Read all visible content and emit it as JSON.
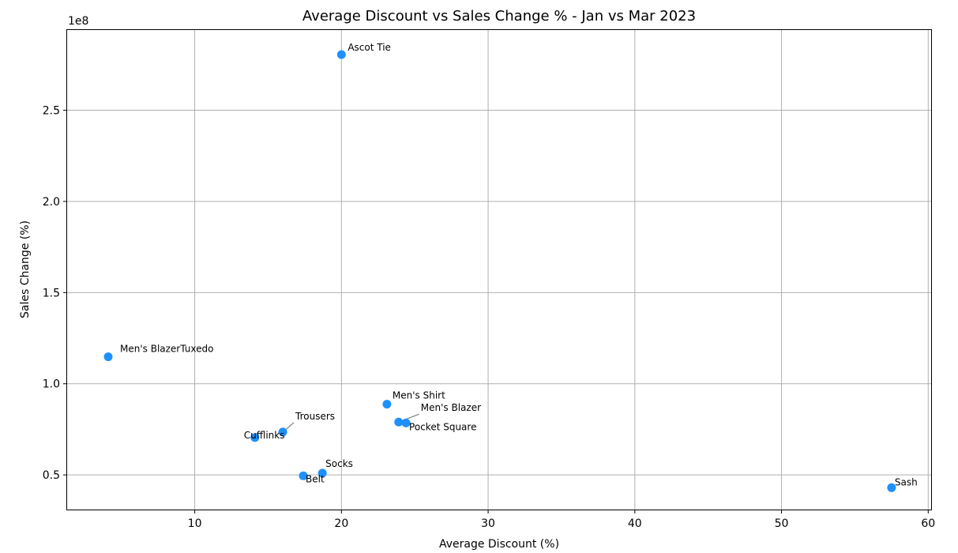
{
  "chart_data": {
    "type": "scatter",
    "title": "Average Discount vs Sales Change % - Jan vs Mar 2023",
    "xlabel": "Average Discount (%)",
    "ylabel": "Sales Change (%)",
    "offset_text": "1e8",
    "xlim": [
      1.3,
      60.2
    ],
    "ylim": [
      0.31,
      2.94
    ],
    "x_ticks": [
      10,
      20,
      30,
      40,
      50,
      60
    ],
    "x_tick_labels": [
      "10",
      "20",
      "30",
      "40",
      "50",
      "60"
    ],
    "y_ticks": [
      0.5,
      1.0,
      1.5,
      2.0,
      2.5
    ],
    "y_tick_labels": [
      "0.5",
      "1.0",
      "1.5",
      "2.0",
      "2.5"
    ],
    "grid": true,
    "marker_color": "#1e90ff",
    "points": [
      {
        "label": "Ascot Tie",
        "x": 20.0,
        "y": 2.805
      },
      {
        "label": "Men's BlazerTuxedo",
        "x": 4.1,
        "y": 1.148
      },
      {
        "label": "Men's Shirt",
        "x": 23.1,
        "y": 0.888
      },
      {
        "label": "Men's Blazer",
        "x": 23.9,
        "y": 0.79
      },
      {
        "label": "Pocket Square",
        "x": 24.4,
        "y": 0.785
      },
      {
        "label": "Trousers",
        "x": 16.0,
        "y": 0.735
      },
      {
        "label": "Cufflinks",
        "x": 14.1,
        "y": 0.705
      },
      {
        "label": "Socks",
        "x": 18.7,
        "y": 0.51
      },
      {
        "label": "Belt",
        "x": 17.4,
        "y": 0.495
      },
      {
        "label": "Sash",
        "x": 57.5,
        "y": 0.43
      }
    ]
  }
}
